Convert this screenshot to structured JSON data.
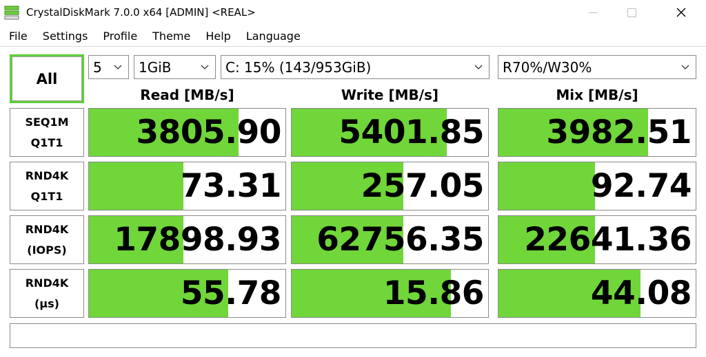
{
  "window": {
    "title": "CrystalDiskMark 7.0.0 x64 [ADMIN] <REAL>",
    "icons": {
      "app": "app-icon",
      "minimize": "minimize-icon",
      "maximize": "maximize-icon",
      "close": "close-icon"
    }
  },
  "menu": {
    "items": [
      "File",
      "Settings",
      "Profile",
      "Theme",
      "Help",
      "Language"
    ]
  },
  "controls": {
    "all_label": "All",
    "count_value": "5",
    "size_value": "1GiB",
    "drive_value": "C: 15% (143/953GiB)",
    "mix_value": "R70%/W30%"
  },
  "headers": {
    "read": "Read [MB/s]",
    "write": "Write [MB/s]",
    "mix": "Mix [MB/s]"
  },
  "rows": [
    {
      "label_line1": "SEQ1M",
      "label_line2": "Q1T1",
      "read": "3805.90",
      "write": "5401.85",
      "mix": "3982.51",
      "read_fill": 0.76,
      "write_fill": 0.79,
      "mix_fill": 0.76
    },
    {
      "label_line1": "RND4K",
      "label_line2": "Q1T1",
      "read": "73.31",
      "write": "257.05",
      "mix": "92.74",
      "read_fill": 0.48,
      "write_fill": 0.57,
      "mix_fill": 0.49
    },
    {
      "label_line1": "RND4K",
      "label_line2": "(IOPS)",
      "read": "17898.93",
      "write": "62756.35",
      "mix": "22641.36",
      "read_fill": 0.48,
      "write_fill": 0.57,
      "mix_fill": 0.49
    },
    {
      "label_line1": "RND4K",
      "label_line2": "(µs)",
      "read": "55.78",
      "write": "15.86",
      "mix": "44.08",
      "read_fill": 0.71,
      "write_fill": 0.81,
      "mix_fill": 0.72
    }
  ],
  "status_text": "",
  "colors": {
    "bar_fill": "#70d63a",
    "all_border": "#5fcf3a",
    "cell_border": "#8a8a8a"
  }
}
